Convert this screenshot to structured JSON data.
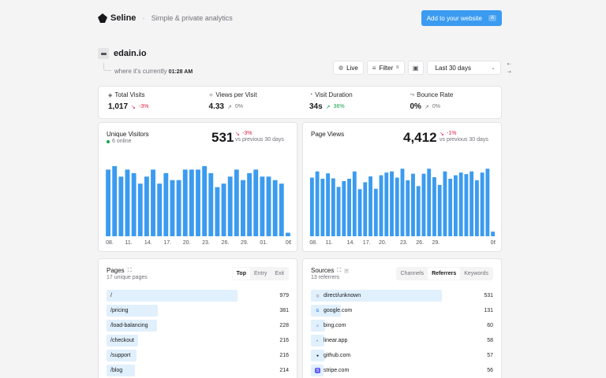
{
  "brand": {
    "name": "Seline",
    "tagline": "Simple & private analytics"
  },
  "header": {
    "add_button": "Add to your website",
    "add_kbd": "A"
  },
  "site": {
    "name": "edain.io",
    "currently_prefix": "where it's currently",
    "time": "01:28 AM"
  },
  "controls": {
    "live": "Live",
    "filter": "Filter",
    "filter_kbd": "B",
    "date_range": "Last 30 days"
  },
  "stats": [
    {
      "label": "Total Visits",
      "icon": "shield-icon",
      "value": "1,017",
      "delta": "-3%",
      "trend": "down"
    },
    {
      "label": "Views per Visit",
      "icon": "sparkle-icon",
      "value": "4.33",
      "delta": "0%",
      "trend": "flat"
    },
    {
      "label": "Visit Duration",
      "icon": "timer-icon",
      "value": "34s",
      "delta": "36%",
      "trend": "up"
    },
    {
      "label": "Bounce Rate",
      "icon": "bounce-icon",
      "value": "0%",
      "delta": "0%",
      "trend": "flat"
    }
  ],
  "unique_visitors": {
    "title": "Unique Visitors",
    "online": "6 online",
    "total": "531",
    "delta": "-3%",
    "vs": "vs previous 30 days"
  },
  "page_views": {
    "title": "Page Views",
    "total": "4,412",
    "delta": "-1%",
    "vs": "vs previous 30 days"
  },
  "chart_data": [
    {
      "type": "bar",
      "title": "Unique Visitors",
      "x_ticks": [
        "08.",
        "11.",
        "14.",
        "17.",
        "20.",
        "23.",
        "26.",
        "29.",
        "01.",
        "06."
      ],
      "values": [
        19,
        20,
        17,
        19,
        18,
        15,
        17,
        19,
        15,
        18,
        16,
        16,
        19,
        19,
        19,
        20,
        18,
        14,
        15,
        17,
        19,
        16,
        18,
        19,
        17,
        17,
        16,
        15,
        1
      ],
      "ylim": [
        0,
        22
      ]
    },
    {
      "type": "bar",
      "title": "Page Views",
      "x_ticks": [
        "08.",
        "11.",
        "14.",
        "17.",
        "20.",
        "23.",
        "26.",
        "29.",
        "06."
      ],
      "values": [
        152,
        168,
        149,
        163,
        150,
        128,
        143,
        149,
        168,
        122,
        140,
        155,
        123,
        158,
        165,
        168,
        152,
        175,
        145,
        162,
        130,
        162,
        175,
        153,
        133,
        168,
        149,
        158,
        165,
        161,
        168,
        145,
        165,
        175,
        12
      ],
      "ylim": [
        0,
        200
      ]
    }
  ],
  "pages": {
    "title": "Pages",
    "subtitle": "17 unique pages",
    "tabs": [
      "Top",
      "Entry",
      "Exit"
    ],
    "active_tab": "Top",
    "rows": [
      {
        "path": "/",
        "value": "979",
        "frac": 1.0
      },
      {
        "path": "/pricing",
        "value": "381",
        "frac": 0.39
      },
      {
        "path": "/load-balancing",
        "value": "228",
        "frac": 0.24
      },
      {
        "path": "/checkout",
        "value": "216",
        "frac": 0.23
      },
      {
        "path": "/support",
        "value": "216",
        "frac": 0.22
      },
      {
        "path": "/blog",
        "value": "214",
        "frac": 0.21
      }
    ]
  },
  "sources": {
    "title": "Sources",
    "subtitle": "13 referrers",
    "tabs": [
      "Channels",
      "Referrers",
      "Keywords"
    ],
    "active_tab": "Referrers",
    "rows": [
      {
        "name": "direct/unknown",
        "value": "531",
        "frac": 1.0,
        "icon": "globe-icon",
        "color": "#9ca3af"
      },
      {
        "name": "google.com",
        "value": "131",
        "frac": 0.25,
        "icon": "google-icon",
        "color": "#4285f4"
      },
      {
        "name": "bing.com",
        "value": "60",
        "frac": 0.12,
        "icon": "bing-icon",
        "color": "#2563eb"
      },
      {
        "name": "linear.app",
        "value": "58",
        "frac": 0.11,
        "icon": "linear-icon",
        "color": "#5e6ad2"
      },
      {
        "name": "github.com",
        "value": "57",
        "frac": 0.11,
        "icon": "github-icon",
        "color": "#18181b"
      },
      {
        "name": "stripe.com",
        "value": "56",
        "frac": 0.1,
        "icon": "stripe-icon",
        "color": "#635bff"
      }
    ]
  },
  "colors": {
    "accent": "#3b9bf0",
    "bar": "#3b9bf0",
    "row_bar": "#e0f0fd"
  }
}
